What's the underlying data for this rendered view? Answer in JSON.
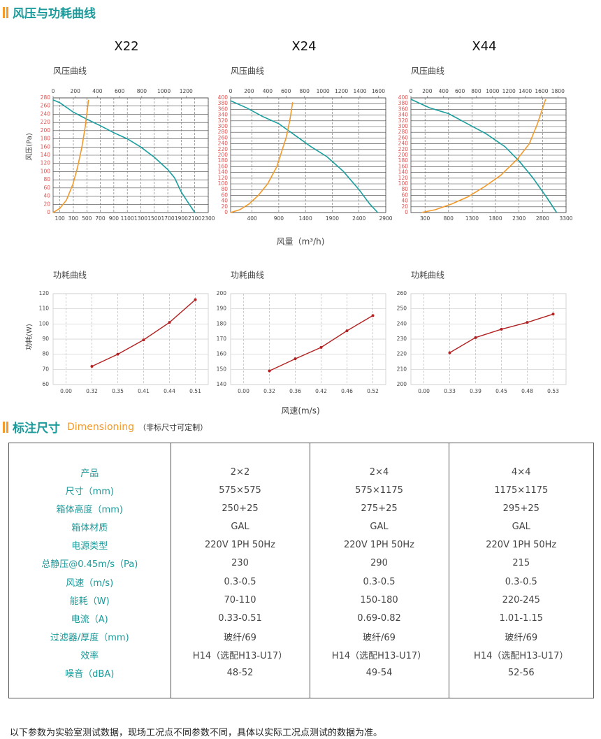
{
  "section1": {
    "title": "风压与功耗曲线"
  },
  "chart_data": [
    {
      "type": "line",
      "title": "X22",
      "subtitle": "风压曲线",
      "ylabel": "风压(Pa)",
      "xlim": [
        0,
        2300
      ],
      "xticks": [
        100,
        300,
        500,
        700,
        900,
        1100,
        1300,
        1500,
        1700,
        1900,
        2100,
        2300
      ],
      "x2lim": [
        0,
        1400
      ],
      "x2ticks": [
        0,
        200,
        400,
        600,
        800,
        1000,
        1200
      ],
      "ylim": [
        0,
        280
      ],
      "yticks": [
        0,
        20,
        40,
        60,
        80,
        100,
        120,
        140,
        160,
        180,
        200,
        220,
        240,
        260,
        280
      ],
      "series": [
        {
          "color": "#1a9e9e",
          "x": [
            0,
            100,
            300,
            500,
            700,
            900,
            1100,
            1300,
            1500,
            1700,
            1800,
            1900,
            2000,
            2100
          ],
          "values": [
            275,
            268,
            245,
            228,
            212,
            195,
            180,
            160,
            135,
            105,
            85,
            50,
            25,
            0
          ]
        },
        {
          "color": "#f39a2b",
          "axis": "x2",
          "x": [
            0,
            60,
            120,
            180,
            220,
            260,
            290,
            320
          ],
          "values": [
            0,
            10,
            30,
            70,
            110,
            160,
            210,
            275
          ]
        }
      ]
    },
    {
      "type": "line",
      "title": "X24",
      "subtitle": "风压曲线",
      "xlabel": "风量（m³/h)",
      "xlim": [
        0,
        2900
      ],
      "xticks": [
        400,
        900,
        1400,
        1900,
        2400,
        2900
      ],
      "x2lim": [
        0,
        1680
      ],
      "x2ticks": [
        0,
        200,
        400,
        600,
        800,
        1000,
        1200,
        1400,
        1600
      ],
      "ylim": [
        0,
        400
      ],
      "yticks": [
        0,
        20,
        40,
        60,
        80,
        100,
        120,
        140,
        160,
        180,
        200,
        220,
        240,
        260,
        280,
        300,
        320,
        340,
        360,
        380,
        400
      ],
      "series": [
        {
          "color": "#1a9e9e",
          "x": [
            0,
            300,
            600,
            900,
            1200,
            1500,
            1800,
            2100,
            2400,
            2600,
            2750
          ],
          "values": [
            390,
            365,
            335,
            310,
            270,
            230,
            195,
            145,
            80,
            30,
            0
          ]
        },
        {
          "color": "#f39a2b",
          "axis": "x2",
          "x": [
            0,
            100,
            200,
            300,
            400,
            500,
            550,
            600,
            640,
            672
          ],
          "values": [
            0,
            10,
            30,
            60,
            100,
            160,
            210,
            260,
            320,
            385
          ]
        }
      ]
    },
    {
      "type": "line",
      "title": "X44",
      "subtitle": "风压曲线",
      "xlim": [
        0,
        3300
      ],
      "xticks": [
        300,
        800,
        1300,
        1800,
        2300,
        2800,
        3300
      ],
      "x2lim": [
        0,
        1900
      ],
      "x2ticks": [
        0,
        200,
        400,
        600,
        800,
        1000,
        1200,
        1400,
        1600,
        1800
      ],
      "ylim": [
        0,
        400
      ],
      "yticks": [
        0,
        20,
        40,
        60,
        80,
        100,
        120,
        140,
        160,
        180,
        200,
        220,
        240,
        260,
        280,
        300,
        320,
        340,
        360,
        380,
        400
      ],
      "series": [
        {
          "color": "#1a9e9e",
          "x": [
            0,
            400,
            800,
            1200,
            1600,
            2000,
            2300,
            2600,
            2900,
            3100
          ],
          "values": [
            395,
            365,
            345,
            310,
            275,
            230,
            180,
            120,
            50,
            0
          ]
        },
        {
          "color": "#f39a2b",
          "axis": "x2",
          "x": [
            130,
            300,
            500,
            700,
            900,
            1100,
            1300,
            1450,
            1550,
            1650
          ],
          "values": [
            0,
            10,
            30,
            55,
            90,
            130,
            185,
            240,
            310,
            395
          ]
        }
      ]
    },
    {
      "type": "line",
      "subtitle": "功耗曲线",
      "ylabel": "功耗(W)",
      "categories": [
        "0.00",
        "0.32",
        "0.35",
        "0.41",
        "0.44",
        "0.51"
      ],
      "values": [
        null,
        72,
        80,
        89.5,
        101,
        116
      ],
      "color": "#b22222",
      "ylim": [
        60,
        120
      ],
      "yticks": [
        60,
        70,
        80,
        90,
        100,
        110,
        120
      ]
    },
    {
      "type": "line",
      "subtitle": "功耗曲线",
      "xlabel": "风速(m/s)",
      "categories": [
        "0.00",
        "0.32",
        "0.36",
        "0.42",
        "0.46",
        "0.52"
      ],
      "values": [
        null,
        149,
        157,
        164.5,
        175.5,
        185.5
      ],
      "color": "#b22222",
      "ylim": [
        140,
        200
      ],
      "yticks": [
        140,
        150,
        160,
        170,
        180,
        190,
        200
      ]
    },
    {
      "type": "line",
      "subtitle": "功耗曲线",
      "categories": [
        "0.00",
        "0.33",
        "0.39",
        "0.45",
        "0.48",
        "0.53"
      ],
      "values": [
        null,
        221,
        231,
        236.5,
        241,
        246.5
      ],
      "color": "#b22222",
      "ylim": [
        200,
        260
      ],
      "yticks": [
        200,
        210,
        220,
        230,
        240,
        250,
        260
      ]
    }
  ],
  "section2": {
    "title": "标注尺寸",
    "title_en": "Dimensioning",
    "note": "（非标尺寸可定制）"
  },
  "table": {
    "rows": [
      [
        "产品",
        "2×2",
        "2×4",
        "4×4"
      ],
      [
        "尺寸（mm)",
        "575×575",
        "575×1175",
        "1175×1175"
      ],
      [
        "箱体高度（mm)",
        "250+25",
        "275+25",
        "295+25"
      ],
      [
        "箱体材质",
        "GAL",
        "GAL",
        "GAL"
      ],
      [
        "电源类型",
        "220V 1PH 50Hz",
        "220V 1PH 50Hz",
        "220V 1PH 50Hz"
      ],
      [
        "总静压@0.45m/s（Pa)",
        "230",
        "290",
        "215"
      ],
      [
        "风速（m/s)",
        "0.3-0.5",
        "0.3-0.5",
        "0.3-0.5"
      ],
      [
        "能耗（W)",
        "70-110",
        "150-180",
        "220-245"
      ],
      [
        "电流（A)",
        "0.33-0.51",
        "0.69-0.82",
        "1.01-1.15"
      ],
      [
        "过滤器/厚度（mm)",
        "玻纤/69",
        "玻纤/69",
        "玻纤/69"
      ],
      [
        "效率",
        "H14（选配H13-U17）",
        "H14（选配H13-U17）",
        "H14（选配H13-U17）"
      ],
      [
        "噪音（dBA)",
        "48-52",
        "49-54",
        "52-56"
      ]
    ]
  },
  "footer": "以下参数为实验室测试数据，现场工况点不同参数不同，具体以实际工况点测试的数据为准。"
}
